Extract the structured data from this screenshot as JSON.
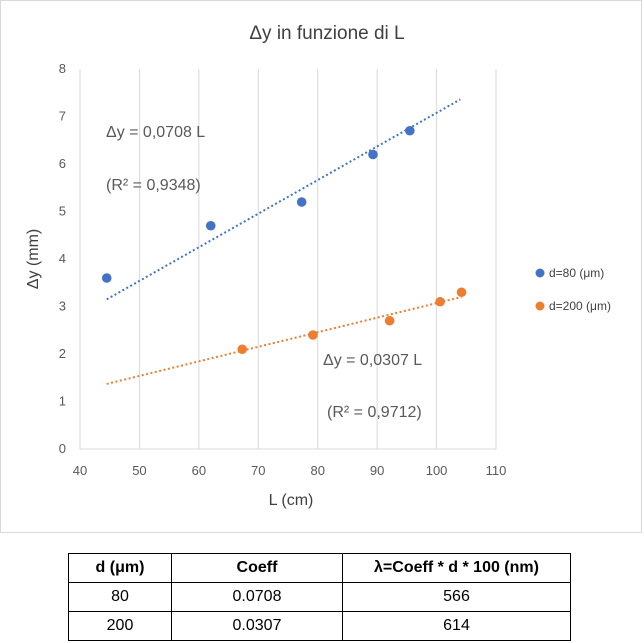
{
  "chart_data": {
    "type": "scatter",
    "title": "Δy in funzione di L",
    "xlabel": "L (cm)",
    "ylabel": "Δy (mm)",
    "xlim": [
      40,
      110
    ],
    "ylim": [
      0,
      8
    ],
    "xticks": [
      "40",
      "50",
      "60",
      "70",
      "80",
      "90",
      "100",
      "110"
    ],
    "yticks": [
      "0",
      "1",
      "2",
      "3",
      "4",
      "5",
      "6",
      "7",
      "8"
    ],
    "grid": "vertical",
    "legend": "right",
    "series": [
      {
        "name": "d=80 (μm)",
        "color": "#4472C4",
        "points": [
          [
            44.5,
            3.6
          ],
          [
            62,
            4.7
          ],
          [
            77.3,
            5.2
          ],
          [
            89.3,
            6.2
          ],
          [
            95.5,
            6.7
          ]
        ],
        "trendline": {
          "x": [
            44.5,
            104
          ],
          "y": [
            3.15,
            7.36
          ]
        },
        "equation": "Δy = 0,0708 L",
        "r2": "(R² = 0,9348)"
      },
      {
        "name": "d=200 (μm)",
        "color": "#ED7D31",
        "points": [
          [
            67.3,
            2.1
          ],
          [
            79.2,
            2.4
          ],
          [
            92.1,
            2.7
          ],
          [
            100.6,
            3.1
          ],
          [
            104.2,
            3.3
          ]
        ],
        "trendline": {
          "x": [
            44.5,
            104.2
          ],
          "y": [
            1.37,
            3.2
          ]
        },
        "equation": "Δy = 0,0307 L",
        "r2": "(R² = 0,9712)"
      }
    ]
  },
  "table": {
    "headers": [
      "d (μm)",
      "Coeff",
      "λ=Coeff * d * 100 (nm)"
    ],
    "rows": [
      [
        "80",
        "0.0708",
        "566"
      ],
      [
        "200",
        "0.0307",
        "614"
      ]
    ]
  }
}
